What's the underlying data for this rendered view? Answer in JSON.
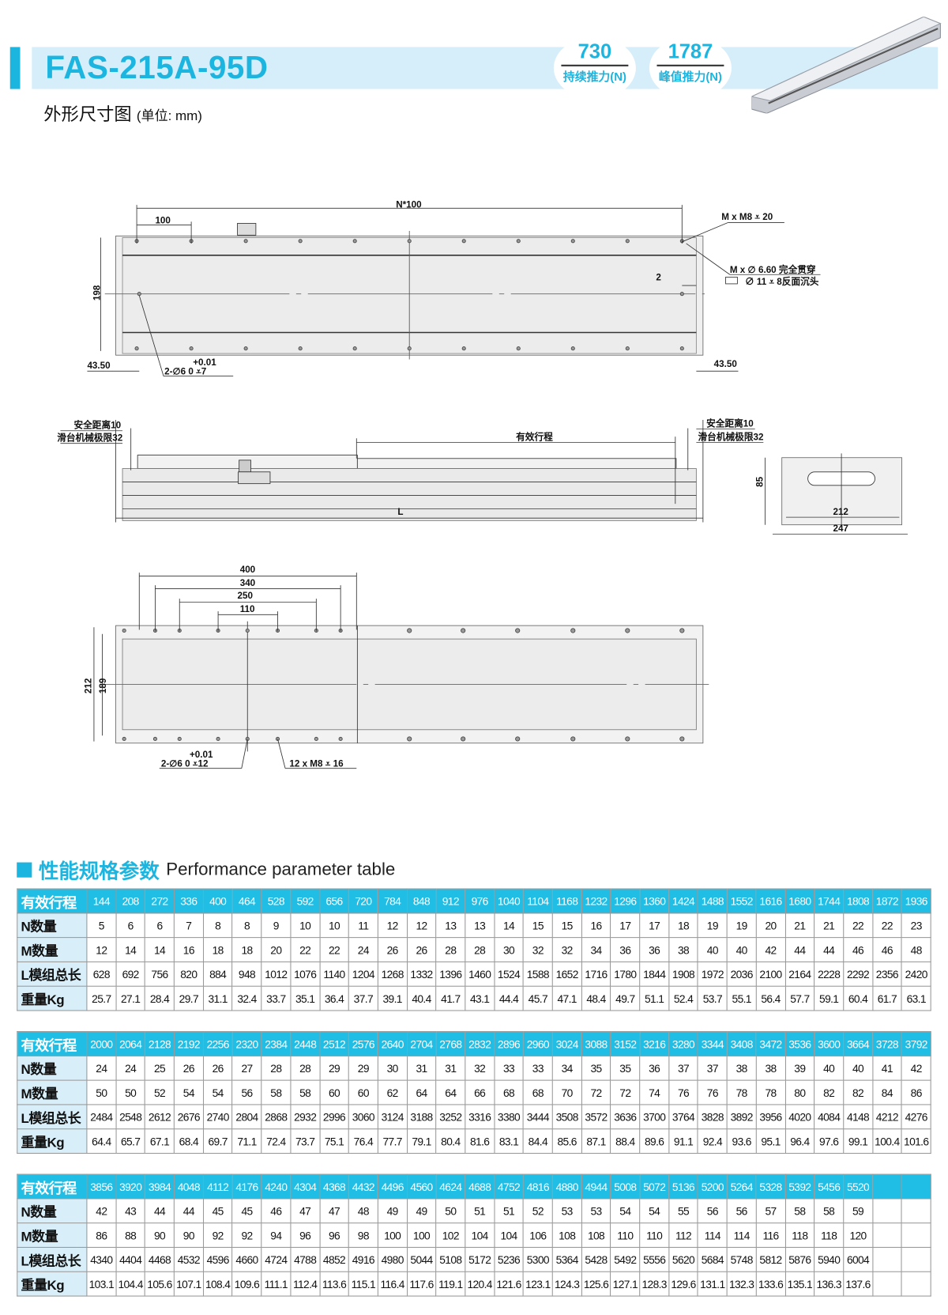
{
  "header": {
    "model": "FAS-215A-95D",
    "continuous_force": {
      "value": "730",
      "label": "持续推力(N)"
    },
    "peak_force": {
      "value": "1787",
      "label": "峰值推力(N)"
    },
    "accent_color": "#1cb5e0"
  },
  "drawing": {
    "title": "外形尺寸图",
    "unit": "(单位: mm)",
    "top_view": {
      "pitch_total": "N*100",
      "pitch": "100",
      "width": "198",
      "edge_left": "43.50",
      "edge_right": "43.50",
      "offset": "2",
      "tapped": "M x  M8 ⩡ 20",
      "through": "M x ∅ 6.60 完全贯穿",
      "counterbore": "∅ 11 ⩡ 8反面沉头",
      "pin_tol": "+0.01",
      "pin": "2-∅6   0    ⩡7"
    },
    "side_view": {
      "safety_left": "安全距离10",
      "limit_left": "滑台机械极限32",
      "safety_right": "安全距离10",
      "limit_right": "滑台机械极限32",
      "stroke": "有效行程",
      "length": "L",
      "height": "85",
      "inner_width": "212",
      "outer_width": "247"
    },
    "carriage_view": {
      "d400": "400",
      "d340": "340",
      "d250": "250",
      "d110": "110",
      "width": "212",
      "inner": "189",
      "pin_tol": "+0.01",
      "pin": "2-∅6   0    ⩡12",
      "tapped": "12 x  M8 ⩡ 16"
    }
  },
  "performance": {
    "title": "性能规格参数",
    "title_en": "Performance parameter table",
    "row_labels": [
      "有效行程",
      "N数量",
      "M数量",
      "L模组总长",
      "重量Kg"
    ],
    "tables": [
      {
        "stroke": [
          "144",
          "208",
          "272",
          "336",
          "400",
          "464",
          "528",
          "592",
          "656",
          "720",
          "784",
          "848",
          "912",
          "976",
          "1040",
          "1104",
          "1168",
          "1232",
          "1296",
          "1360",
          "1424",
          "1488",
          "1552",
          "1616",
          "1680",
          "1744",
          "1808",
          "1872",
          "1936"
        ],
        "n": [
          "5",
          "6",
          "6",
          "7",
          "8",
          "8",
          "9",
          "10",
          "10",
          "11",
          "12",
          "12",
          "13",
          "13",
          "14",
          "15",
          "15",
          "16",
          "17",
          "17",
          "18",
          "19",
          "19",
          "20",
          "21",
          "21",
          "22",
          "22",
          "23"
        ],
        "m": [
          "12",
          "14",
          "14",
          "16",
          "18",
          "18",
          "20",
          "22",
          "22",
          "24",
          "26",
          "26",
          "28",
          "28",
          "30",
          "32",
          "32",
          "34",
          "36",
          "36",
          "38",
          "40",
          "40",
          "42",
          "44",
          "44",
          "46",
          "46",
          "48"
        ],
        "l": [
          "628",
          "692",
          "756",
          "820",
          "884",
          "948",
          "1012",
          "1076",
          "1140",
          "1204",
          "1268",
          "1332",
          "1396",
          "1460",
          "1524",
          "1588",
          "1652",
          "1716",
          "1780",
          "1844",
          "1908",
          "1972",
          "2036",
          "2100",
          "2164",
          "2228",
          "2292",
          "2356",
          "2420"
        ],
        "weight": [
          "25.7",
          "27.1",
          "28.4",
          "29.7",
          "31.1",
          "32.4",
          "33.7",
          "35.1",
          "36.4",
          "37.7",
          "39.1",
          "40.4",
          "41.7",
          "43.1",
          "44.4",
          "45.7",
          "47.1",
          "48.4",
          "49.7",
          "51.1",
          "52.4",
          "53.7",
          "55.1",
          "56.4",
          "57.7",
          "59.1",
          "60.4",
          "61.7",
          "63.1"
        ]
      },
      {
        "stroke": [
          "2000",
          "2064",
          "2128",
          "2192",
          "2256",
          "2320",
          "2384",
          "2448",
          "2512",
          "2576",
          "2640",
          "2704",
          "2768",
          "2832",
          "2896",
          "2960",
          "3024",
          "3088",
          "3152",
          "3216",
          "3280",
          "3344",
          "3408",
          "3472",
          "3536",
          "3600",
          "3664",
          "3728",
          "3792"
        ],
        "n": [
          "24",
          "24",
          "25",
          "26",
          "26",
          "27",
          "28",
          "28",
          "29",
          "29",
          "30",
          "31",
          "31",
          "32",
          "33",
          "33",
          "34",
          "35",
          "35",
          "36",
          "37",
          "37",
          "38",
          "38",
          "39",
          "40",
          "40",
          "41",
          "42"
        ],
        "m": [
          "50",
          "50",
          "52",
          "54",
          "54",
          "56",
          "58",
          "58",
          "60",
          "60",
          "62",
          "64",
          "64",
          "66",
          "68",
          "68",
          "70",
          "72",
          "72",
          "74",
          "76",
          "76",
          "78",
          "78",
          "80",
          "82",
          "82",
          "84",
          "86"
        ],
        "l": [
          "2484",
          "2548",
          "2612",
          "2676",
          "2740",
          "2804",
          "2868",
          "2932",
          "2996",
          "3060",
          "3124",
          "3188",
          "3252",
          "3316",
          "3380",
          "3444",
          "3508",
          "3572",
          "3636",
          "3700",
          "3764",
          "3828",
          "3892",
          "3956",
          "4020",
          "4084",
          "4148",
          "4212",
          "4276"
        ],
        "weight": [
          "64.4",
          "65.7",
          "67.1",
          "68.4",
          "69.7",
          "71.1",
          "72.4",
          "73.7",
          "75.1",
          "76.4",
          "77.7",
          "79.1",
          "80.4",
          "81.6",
          "83.1",
          "84.4",
          "85.6",
          "87.1",
          "88.4",
          "89.6",
          "91.1",
          "92.4",
          "93.6",
          "95.1",
          "96.4",
          "97.6",
          "99.1",
          "100.4",
          "101.6"
        ]
      },
      {
        "stroke": [
          "3856",
          "3920",
          "3984",
          "4048",
          "4112",
          "4176",
          "4240",
          "4304",
          "4368",
          "4432",
          "4496",
          "4560",
          "4624",
          "4688",
          "4752",
          "4816",
          "4880",
          "4944",
          "5008",
          "5072",
          "5136",
          "5200",
          "5264",
          "5328",
          "5392",
          "5456",
          "5520",
          "",
          ""
        ],
        "n": [
          "42",
          "43",
          "44",
          "44",
          "45",
          "45",
          "46",
          "47",
          "47",
          "48",
          "49",
          "49",
          "50",
          "51",
          "51",
          "52",
          "53",
          "53",
          "54",
          "54",
          "55",
          "56",
          "56",
          "57",
          "58",
          "58",
          "59",
          "",
          ""
        ],
        "m": [
          "86",
          "88",
          "90",
          "90",
          "92",
          "92",
          "94",
          "96",
          "96",
          "98",
          "100",
          "100",
          "102",
          "104",
          "104",
          "106",
          "108",
          "108",
          "110",
          "110",
          "112",
          "114",
          "114",
          "116",
          "118",
          "118",
          "120",
          "",
          ""
        ],
        "l": [
          "4340",
          "4404",
          "4468",
          "4532",
          "4596",
          "4660",
          "4724",
          "4788",
          "4852",
          "4916",
          "4980",
          "5044",
          "5108",
          "5172",
          "5236",
          "5300",
          "5364",
          "5428",
          "5492",
          "5556",
          "5620",
          "5684",
          "5748",
          "5812",
          "5876",
          "5940",
          "6004",
          "",
          ""
        ],
        "weight": [
          "103.1",
          "104.4",
          "105.6",
          "107.1",
          "108.4",
          "109.6",
          "111.1",
          "112.4",
          "113.6",
          "115.1",
          "116.4",
          "117.6",
          "119.1",
          "120.4",
          "121.6",
          "123.1",
          "124.3",
          "125.6",
          "127.1",
          "128.3",
          "129.6",
          "131.1",
          "132.3",
          "133.6",
          "135.1",
          "136.3",
          "137.6",
          "",
          ""
        ]
      }
    ]
  }
}
